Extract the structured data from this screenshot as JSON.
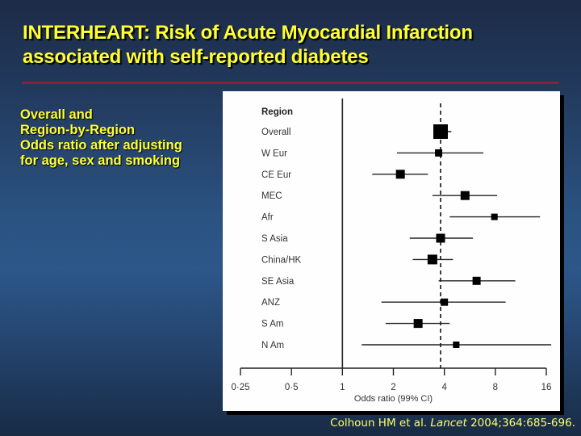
{
  "slide": {
    "title_line1": "INTERHEART: Risk of Acute Myocardial Infarction",
    "title_line2": "associated with self-reported diabetes",
    "subtitle_lines": [
      "Overall and",
      "Region-by-Region",
      "Odds ratio after adjusting",
      "for age, sex and smoking"
    ],
    "citation_authors": "Colhoun HM et al.",
    "citation_journal": "Lancet",
    "citation_ref": "2004;364:685-696.",
    "colors": {
      "title": "#ffff33",
      "rule": "#8b1f3c",
      "citation": "#ffff66"
    }
  },
  "chart_data": {
    "type": "forest",
    "title": "",
    "column_header": "Region",
    "xlabel": "Odds ratio (99% CI)",
    "ylabel": "",
    "x_scale": "log2",
    "xlim": [
      0.25,
      16
    ],
    "x_ticks": [
      0.25,
      0.5,
      1,
      2,
      4,
      8,
      16
    ],
    "x_tick_labels": [
      "0·25",
      "0·5",
      "1",
      "2",
      "4",
      "8",
      "16"
    ],
    "reference_line": 1,
    "overall_line": 3.8,
    "grid": false,
    "legend": null,
    "categories": [
      "Overall",
      "W Eur",
      "CE Eur",
      "MEC",
      "Afr",
      "S Asia",
      "China/HK",
      "SE Asia",
      "ANZ",
      "S Am",
      "N Am"
    ],
    "series": [
      {
        "name": "Odds ratio",
        "values": [
          3.8,
          3.7,
          2.2,
          5.3,
          7.9,
          3.8,
          3.4,
          6.2,
          4.0,
          2.8,
          4.7
        ]
      },
      {
        "name": "CI lower (99%)",
        "values": [
          3.5,
          2.1,
          1.5,
          3.4,
          4.3,
          2.5,
          2.6,
          3.7,
          1.7,
          1.8,
          1.3
        ]
      },
      {
        "name": "CI upper (99%)",
        "values": [
          4.4,
          6.8,
          3.2,
          8.2,
          14.7,
          5.9,
          4.5,
          10.5,
          9.2,
          4.3,
          17.1
        ]
      },
      {
        "name": "Marker size (px)",
        "values": [
          18,
          9,
          11,
          11,
          8,
          11,
          12,
          10,
          9,
          11,
          8
        ]
      }
    ]
  }
}
